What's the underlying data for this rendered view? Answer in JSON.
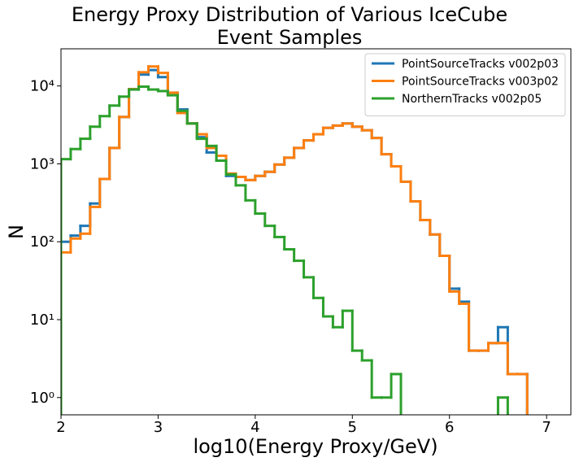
{
  "chart_data": {
    "type": "step-histogram",
    "title": "Energy Proxy Distribution of Various IceCube Event Samples",
    "x_label": "log10(Energy Proxy/GeV)",
    "y_label": "N",
    "bins": [
      2.0,
      2.1,
      2.2,
      2.3,
      2.4,
      2.5,
      2.6,
      2.7,
      2.8,
      2.9,
      3.0,
      3.1,
      3.2,
      3.3,
      3.4,
      3.5,
      3.6,
      3.7,
      3.8,
      3.9,
      4.0,
      4.1,
      4.2,
      4.3,
      4.4,
      4.5,
      4.6,
      4.7,
      4.8,
      4.9,
      5.0,
      5.1,
      5.2,
      5.3,
      5.4,
      5.5,
      5.6,
      5.7,
      5.8,
      5.9,
      6.0,
      6.1,
      6.2,
      6.3,
      6.4,
      6.5,
      6.6,
      6.7,
      6.8,
      6.9,
      7.0
    ],
    "series": [
      {
        "name": "PointSourceTracks v002p03",
        "color": "#1f77b4",
        "values": [
          100,
          120,
          160,
          310,
          640,
          1600,
          4000,
          9100,
          14000,
          16000,
          13000,
          8200,
          5000,
          3300,
          2200,
          1400,
          1100,
          700,
          680,
          620,
          700,
          790,
          980,
          1200,
          1600,
          2000,
          2400,
          2900,
          3100,
          3300,
          3000,
          2700,
          2150,
          1330,
          930,
          590,
          330,
          190,
          124,
          66,
          25,
          17,
          4,
          4,
          5,
          8,
          2,
          2,
          0,
          0
        ]
      },
      {
        "name": "PointSourceTracks v003p02",
        "color": "#ff7f0e",
        "values": [
          73,
          110,
          127,
          280,
          640,
          1600,
          4000,
          9100,
          15000,
          17800,
          14700,
          8200,
          4500,
          3300,
          2400,
          1600,
          1270,
          750,
          680,
          620,
          700,
          790,
          980,
          1200,
          1600,
          2000,
          2400,
          2900,
          3100,
          3300,
          3000,
          2700,
          2150,
          1330,
          930,
          590,
          330,
          190,
          124,
          66,
          23,
          16,
          4,
          4,
          5,
          5,
          2,
          2,
          0,
          0
        ]
      },
      {
        "name": "NorthernTracks v002p05",
        "color": "#2ca02c",
        "values": [
          1150,
          1550,
          2100,
          3000,
          4100,
          5600,
          7300,
          9000,
          9800,
          9000,
          8600,
          7600,
          4800,
          3300,
          2100,
          1700,
          1100,
          730,
          530,
          340,
          230,
          160,
          115,
          80,
          57,
          35,
          19,
          11,
          8,
          13,
          4,
          3,
          1,
          1,
          2,
          0,
          0,
          0,
          0,
          0,
          0,
          0,
          0,
          0,
          0,
          1,
          0,
          0,
          0,
          0
        ]
      }
    ],
    "xlim": [
      2,
      7.25
    ],
    "xticks": [
      2,
      3,
      4,
      5,
      6,
      7
    ],
    "ylim": [
      0.6,
      30000
    ],
    "y_log": true,
    "yticks": [
      {
        "value": 1,
        "label": "10⁰"
      },
      {
        "value": 10,
        "label": "10¹"
      },
      {
        "value": 100,
        "label": "10²"
      },
      {
        "value": 1000,
        "label": "10³"
      },
      {
        "value": 10000,
        "label": "10⁴"
      }
    ],
    "legend": "upper right"
  }
}
